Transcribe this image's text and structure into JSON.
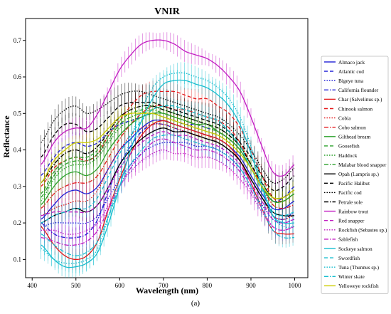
{
  "caption": "(a)",
  "chart_data": {
    "type": "line",
    "title": "VNIR",
    "xlabel": "Wavelength (nm)",
    "ylabel": "Reflectance",
    "xlim": [
      385,
      1030
    ],
    "ylim": [
      0.05,
      0.76
    ],
    "xticks": [
      400,
      500,
      600,
      700,
      800,
      900,
      1000
    ],
    "yticks": [
      0.1,
      0.2,
      0.3,
      0.4,
      0.5,
      0.6,
      0.7
    ],
    "grid": false,
    "legend_position": "right",
    "error_bars": true,
    "x": [
      420,
      450,
      475,
      500,
      525,
      550,
      575,
      600,
      625,
      650,
      675,
      700,
      725,
      750,
      775,
      800,
      825,
      850,
      875,
      900,
      925,
      950,
      975,
      1000
    ],
    "series": [
      {
        "name": "Almaco jack",
        "color": "#1f1fd6",
        "style": "solid",
        "values": [
          0.21,
          0.25,
          0.28,
          0.29,
          0.28,
          0.3,
          0.35,
          0.4,
          0.43,
          0.46,
          0.48,
          0.48,
          0.47,
          0.46,
          0.45,
          0.44,
          0.43,
          0.41,
          0.38,
          0.33,
          0.28,
          0.24,
          0.24,
          0.26
        ]
      },
      {
        "name": "Atlantic cod",
        "color": "#1f1fd6",
        "style": "dashed",
        "values": [
          0.33,
          0.38,
          0.41,
          0.42,
          0.41,
          0.42,
          0.45,
          0.47,
          0.48,
          0.49,
          0.5,
          0.49,
          0.48,
          0.47,
          0.47,
          0.46,
          0.45,
          0.43,
          0.4,
          0.35,
          0.3,
          0.26,
          0.27,
          0.3
        ]
      },
      {
        "name": "Bigeye tuna",
        "color": "#1f1fd6",
        "style": "dotted",
        "values": [
          0.19,
          0.2,
          0.2,
          0.2,
          0.2,
          0.22,
          0.27,
          0.32,
          0.36,
          0.39,
          0.41,
          0.42,
          0.42,
          0.42,
          0.41,
          0.41,
          0.4,
          0.38,
          0.35,
          0.3,
          0.25,
          0.21,
          0.2,
          0.21
        ]
      },
      {
        "name": "California flounder",
        "color": "#1f1fd6",
        "style": "dashdot",
        "values": [
          0.2,
          0.17,
          0.16,
          0.16,
          0.17,
          0.21,
          0.29,
          0.36,
          0.41,
          0.45,
          0.47,
          0.47,
          0.46,
          0.45,
          0.44,
          0.43,
          0.42,
          0.4,
          0.37,
          0.32,
          0.27,
          0.22,
          0.21,
          0.23
        ]
      },
      {
        "name": "Char (Salvelinus sp.)",
        "color": "#e41a1c",
        "style": "solid",
        "values": [
          0.19,
          0.14,
          0.11,
          0.1,
          0.11,
          0.15,
          0.24,
          0.32,
          0.39,
          0.44,
          0.47,
          0.48,
          0.47,
          0.46,
          0.45,
          0.44,
          0.43,
          0.41,
          0.37,
          0.31,
          0.24,
          0.18,
          0.17,
          0.17
        ]
      },
      {
        "name": "Chinook salmon",
        "color": "#e41a1c",
        "style": "dashed",
        "values": [
          0.3,
          0.35,
          0.37,
          0.38,
          0.37,
          0.39,
          0.44,
          0.48,
          0.52,
          0.55,
          0.56,
          0.56,
          0.56,
          0.55,
          0.54,
          0.54,
          0.52,
          0.5,
          0.46,
          0.4,
          0.33,
          0.27,
          0.26,
          0.28
        ]
      },
      {
        "name": "Cobia",
        "color": "#e41a1c",
        "style": "dotted",
        "values": [
          0.22,
          0.24,
          0.25,
          0.26,
          0.26,
          0.29,
          0.35,
          0.4,
          0.44,
          0.46,
          0.47,
          0.47,
          0.46,
          0.45,
          0.44,
          0.44,
          0.42,
          0.4,
          0.37,
          0.32,
          0.27,
          0.22,
          0.21,
          0.22
        ]
      },
      {
        "name": "Coho salmon",
        "color": "#e41a1c",
        "style": "dashdot",
        "values": [
          0.24,
          0.28,
          0.3,
          0.31,
          0.31,
          0.33,
          0.38,
          0.43,
          0.47,
          0.5,
          0.52,
          0.52,
          0.51,
          0.51,
          0.5,
          0.49,
          0.48,
          0.46,
          0.42,
          0.36,
          0.3,
          0.25,
          0.24,
          0.25
        ]
      },
      {
        "name": "Gilthead bream",
        "color": "#2ca02c",
        "style": "solid",
        "values": [
          0.25,
          0.3,
          0.33,
          0.34,
          0.33,
          0.35,
          0.4,
          0.44,
          0.47,
          0.49,
          0.5,
          0.5,
          0.49,
          0.48,
          0.47,
          0.47,
          0.45,
          0.43,
          0.4,
          0.35,
          0.3,
          0.26,
          0.26,
          0.28
        ]
      },
      {
        "name": "Goosefish",
        "color": "#2ca02c",
        "style": "dashed",
        "values": [
          0.28,
          0.34,
          0.37,
          0.38,
          0.38,
          0.4,
          0.44,
          0.48,
          0.5,
          0.51,
          0.52,
          0.51,
          0.5,
          0.49,
          0.48,
          0.47,
          0.46,
          0.44,
          0.41,
          0.36,
          0.31,
          0.27,
          0.27,
          0.29
        ]
      },
      {
        "name": "Haddock",
        "color": "#2ca02c",
        "style": "dotted",
        "values": [
          0.26,
          0.32,
          0.35,
          0.36,
          0.36,
          0.38,
          0.42,
          0.46,
          0.48,
          0.49,
          0.5,
          0.49,
          0.48,
          0.47,
          0.46,
          0.45,
          0.44,
          0.42,
          0.39,
          0.35,
          0.3,
          0.26,
          0.26,
          0.28
        ]
      },
      {
        "name": "Malabar blood snapper",
        "color": "#2ca02c",
        "style": "dashdot",
        "values": [
          0.27,
          0.33,
          0.36,
          0.37,
          0.37,
          0.39,
          0.43,
          0.47,
          0.49,
          0.5,
          0.51,
          0.5,
          0.49,
          0.48,
          0.47,
          0.46,
          0.45,
          0.43,
          0.4,
          0.35,
          0.3,
          0.26,
          0.26,
          0.28
        ]
      },
      {
        "name": "Opah (Lampris sp.)",
        "color": "#000000",
        "style": "solid",
        "values": [
          0.2,
          0.22,
          0.23,
          0.24,
          0.23,
          0.25,
          0.3,
          0.36,
          0.4,
          0.43,
          0.45,
          0.46,
          0.45,
          0.45,
          0.44,
          0.43,
          0.42,
          0.4,
          0.37,
          0.32,
          0.27,
          0.23,
          0.22,
          0.22
        ]
      },
      {
        "name": "Pacific Halibut",
        "color": "#000000",
        "style": "dashed",
        "values": [
          0.38,
          0.44,
          0.47,
          0.47,
          0.45,
          0.46,
          0.49,
          0.52,
          0.53,
          0.53,
          0.53,
          0.52,
          0.51,
          0.5,
          0.49,
          0.48,
          0.47,
          0.45,
          0.42,
          0.38,
          0.33,
          0.29,
          0.3,
          0.33
        ]
      },
      {
        "name": "Pacific cod",
        "color": "#000000",
        "style": "dotted",
        "values": [
          0.42,
          0.48,
          0.51,
          0.52,
          0.5,
          0.51,
          0.53,
          0.55,
          0.56,
          0.56,
          0.55,
          0.54,
          0.53,
          0.52,
          0.51,
          0.5,
          0.49,
          0.47,
          0.44,
          0.4,
          0.35,
          0.31,
          0.32,
          0.35
        ]
      },
      {
        "name": "Petrale sole",
        "color": "#000000",
        "style": "dashdot",
        "values": [
          0.31,
          0.36,
          0.39,
          0.4,
          0.39,
          0.41,
          0.45,
          0.49,
          0.51,
          0.52,
          0.52,
          0.51,
          0.5,
          0.49,
          0.48,
          0.47,
          0.46,
          0.44,
          0.41,
          0.36,
          0.31,
          0.27,
          0.27,
          0.29
        ]
      },
      {
        "name": "Rainbow trout",
        "color": "#c21cc2",
        "style": "solid",
        "values": [
          0.36,
          0.42,
          0.45,
          0.46,
          0.46,
          0.5,
          0.56,
          0.62,
          0.66,
          0.69,
          0.7,
          0.7,
          0.69,
          0.67,
          0.66,
          0.65,
          0.63,
          0.6,
          0.56,
          0.49,
          0.41,
          0.34,
          0.33,
          0.36
        ]
      },
      {
        "name": "Red snapper",
        "color": "#c21cc2",
        "style": "dashed",
        "values": [
          0.22,
          0.23,
          0.23,
          0.23,
          0.23,
          0.25,
          0.3,
          0.35,
          0.39,
          0.42,
          0.44,
          0.45,
          0.44,
          0.44,
          0.43,
          0.42,
          0.41,
          0.39,
          0.36,
          0.31,
          0.26,
          0.21,
          0.2,
          0.21
        ]
      },
      {
        "name": "Rockfish (Sebastes sp.)",
        "color": "#c21cc2",
        "style": "dotted",
        "values": [
          0.18,
          0.18,
          0.17,
          0.17,
          0.18,
          0.2,
          0.25,
          0.3,
          0.34,
          0.37,
          0.39,
          0.4,
          0.39,
          0.39,
          0.38,
          0.38,
          0.37,
          0.35,
          0.32,
          0.28,
          0.23,
          0.19,
          0.18,
          0.19
        ]
      },
      {
        "name": "Sablefish",
        "color": "#c21cc2",
        "style": "dashdot",
        "values": [
          0.16,
          0.15,
          0.14,
          0.14,
          0.15,
          0.18,
          0.24,
          0.3,
          0.35,
          0.39,
          0.42,
          0.43,
          0.42,
          0.41,
          0.4,
          0.4,
          0.39,
          0.37,
          0.34,
          0.29,
          0.24,
          0.19,
          0.18,
          0.19
        ]
      },
      {
        "name": "Sockeye salmon",
        "color": "#17becf",
        "style": "solid",
        "values": [
          0.14,
          0.1,
          0.08,
          0.08,
          0.09,
          0.12,
          0.2,
          0.3,
          0.4,
          0.48,
          0.54,
          0.58,
          0.59,
          0.59,
          0.58,
          0.57,
          0.55,
          0.52,
          0.47,
          0.39,
          0.3,
          0.22,
          0.2,
          0.2
        ]
      },
      {
        "name": "Swordfish",
        "color": "#17becf",
        "style": "dashed",
        "values": [
          0.2,
          0.22,
          0.23,
          0.24,
          0.24,
          0.27,
          0.33,
          0.39,
          0.44,
          0.48,
          0.51,
          0.52,
          0.52,
          0.51,
          0.5,
          0.49,
          0.48,
          0.45,
          0.41,
          0.35,
          0.29,
          0.23,
          0.22,
          0.23
        ]
      },
      {
        "name": "Tuna (Thunnus sp.)",
        "color": "#17becf",
        "style": "dotted",
        "values": [
          0.13,
          0.1,
          0.09,
          0.09,
          0.1,
          0.13,
          0.22,
          0.33,
          0.43,
          0.51,
          0.57,
          0.6,
          0.61,
          0.61,
          0.6,
          0.59,
          0.57,
          0.54,
          0.49,
          0.41,
          0.31,
          0.22,
          0.19,
          0.19
        ]
      },
      {
        "name": "Winter skate",
        "color": "#17becf",
        "style": "dashdot",
        "values": [
          0.17,
          0.14,
          0.12,
          0.11,
          0.12,
          0.15,
          0.22,
          0.3,
          0.36,
          0.4,
          0.43,
          0.44,
          0.44,
          0.43,
          0.42,
          0.41,
          0.4,
          0.38,
          0.35,
          0.3,
          0.24,
          0.18,
          0.16,
          0.16
        ]
      },
      {
        "name": "Yelloweye rockfish",
        "color": "#cccc00",
        "style": "solid",
        "values": [
          0.31,
          0.37,
          0.4,
          0.42,
          0.42,
          0.43,
          0.46,
          0.49,
          0.5,
          0.5,
          0.5,
          0.49,
          0.48,
          0.47,
          0.46,
          0.45,
          0.44,
          0.42,
          0.39,
          0.35,
          0.3,
          0.27,
          0.27,
          0.29
        ]
      }
    ]
  }
}
